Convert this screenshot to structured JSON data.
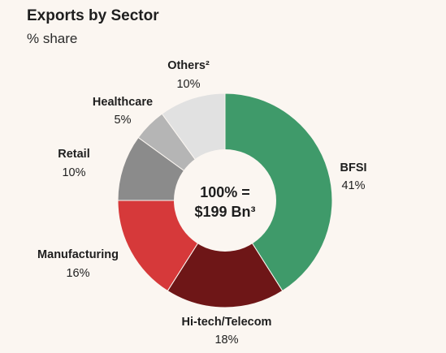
{
  "chart_data": {
    "type": "pie",
    "title": "Exports by Sector",
    "subtitle": "% share",
    "center_label": [
      "100% =",
      "$199 Bn³"
    ],
    "slices": [
      {
        "label": "BFSI",
        "value": 41,
        "display": "41%",
        "color": "#3f9a6a"
      },
      {
        "label": "Hi-tech/Telecom",
        "value": 18,
        "display": "18%",
        "color": "#6e1617"
      },
      {
        "label": "Manufacturing",
        "value": 16,
        "display": "16%",
        "color": "#d6393a"
      },
      {
        "label": "Retail",
        "value": 10,
        "display": "10%",
        "color": "#8b8b8b"
      },
      {
        "label": "Healthcare",
        "value": 5,
        "display": "5%",
        "color": "#b5b5b5"
      },
      {
        "label": "Others²",
        "value": 10,
        "display": "10%",
        "color": "#e1e1e1"
      }
    ]
  }
}
